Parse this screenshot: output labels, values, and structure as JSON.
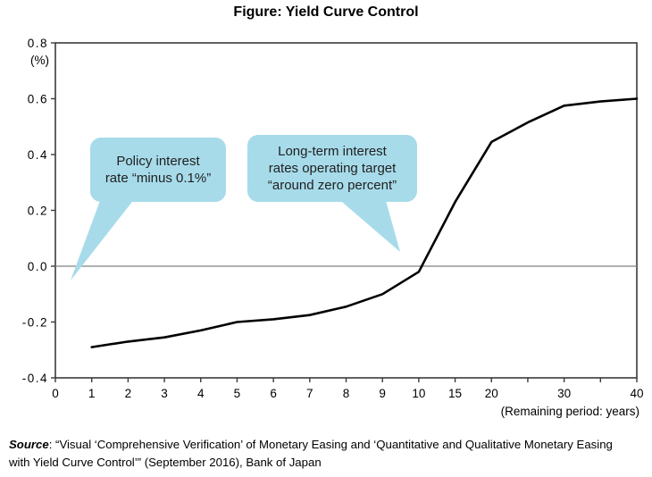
{
  "title": "Figure: Yield Curve Control",
  "callouts": {
    "policy": {
      "lines": [
        "Policy interest",
        "rate “minus 0.1%”"
      ]
    },
    "long_term": {
      "lines": [
        "Long-term interest",
        "rates operating target",
        "“around zero percent”"
      ]
    }
  },
  "x_axis_note": "(Remaining period: years)",
  "source": {
    "label": "Source",
    "lines": [
      ": “Visual ‘Comprehensive Verification’ of Monetary Easing and ‘Quantitative and Qualitative Monetary Easing",
      "with Yield Curve Control’” (September 2016), Bank of Japan"
    ]
  },
  "colors": {
    "bubble_fill": "#a7dbea",
    "curve": "#000000",
    "zero_line": "#808080",
    "axis": "#3a3a3a",
    "text": "#000000"
  },
  "chart_data": {
    "type": "line",
    "title": "Figure: Yield Curve Control",
    "ylabel": "(%)",
    "xlabel": "(Remaining period: years)",
    "ylim": [
      -0.4,
      0.8
    ],
    "y_ticks": [
      0.8,
      0.6,
      0.4,
      0.2,
      0.0,
      -0.2,
      -0.4
    ],
    "y_tick_labels": [
      "0.8",
      "0.6",
      "0.4",
      "0.2",
      "0.0",
      "-0.2",
      "-0.4"
    ],
    "x_scale": "categorical-equal-spacing",
    "x_tick_positions": [
      0,
      1,
      2,
      3,
      4,
      5,
      6,
      7,
      8,
      9,
      10,
      15,
      20,
      25,
      30,
      35,
      40
    ],
    "x_tick_labels": [
      "0",
      "1",
      "2",
      "3",
      "4",
      "5",
      "6",
      "7",
      "8",
      "9",
      "10",
      "15",
      "20",
      "",
      "30",
      "",
      "40"
    ],
    "grid": false,
    "zero_line": true,
    "legend": "none",
    "series": [
      {
        "name": "yield-curve",
        "x": [
          1,
          2,
          3,
          4,
          5,
          6,
          7,
          8,
          9,
          10,
          15,
          20,
          25,
          30,
          35,
          40
        ],
        "values": [
          -0.29,
          -0.27,
          -0.255,
          -0.23,
          -0.2,
          -0.19,
          -0.175,
          -0.145,
          -0.1,
          -0.02,
          0.23,
          0.445,
          0.515,
          0.575,
          0.59,
          0.6
        ]
      }
    ],
    "annotations": [
      "Policy interest rate “minus 0.1%”",
      "Long-term interest rates operating target “around zero percent”"
    ]
  }
}
